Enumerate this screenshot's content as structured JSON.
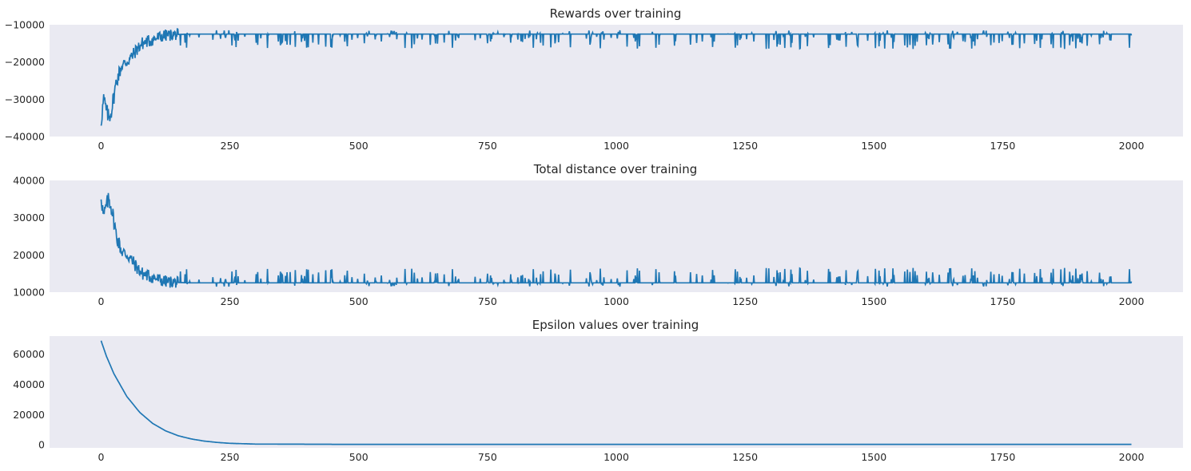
{
  "chart_data": [
    {
      "type": "line",
      "title": "Rewards over training",
      "xlabel": "",
      "ylabel": "",
      "xlim": [
        -100,
        2100
      ],
      "ylim": [
        -40000,
        -10000
      ],
      "xticks": [
        0,
        250,
        500,
        750,
        1000,
        1250,
        1500,
        1750,
        2000
      ],
      "xtick_labels": [
        "0",
        "250",
        "500",
        "750",
        "1000",
        "1250",
        "1500",
        "1750",
        "2000"
      ],
      "yticks": [
        -10000,
        -20000,
        -30000,
        -40000
      ],
      "ytick_labels": [
        "−10000",
        "−20000",
        "−30000",
        "−40000"
      ],
      "grid": false,
      "color": "#1f77b4",
      "series": [
        {
          "x": [
            0,
            5,
            10,
            15,
            20,
            25,
            30,
            40,
            50,
            60,
            70,
            80,
            90,
            100,
            110,
            120,
            130,
            150,
            175,
            200,
            250,
            300,
            400,
            500,
            750,
            1000,
            1250,
            1500,
            1750,
            2000
          ],
          "values": [
            -36000,
            -30000,
            -33000,
            -35000,
            -33000,
            -29000,
            -25000,
            -21000,
            -20000,
            -18500,
            -16500,
            -15000,
            -14500,
            -14000,
            -13500,
            -13000,
            -12800,
            -12600,
            -12500,
            -12500,
            -12500,
            -12500,
            -12500,
            -12500,
            -12500,
            -12500,
            -12500,
            -12500,
            -12500,
            -12500
          ]
        }
      ],
      "noise_envelope": {
        "x": [
          0,
          20,
          50,
          100,
          150,
          2000
        ],
        "spread": [
          4000,
          4000,
          3000,
          3000,
          2500,
          2500
        ]
      }
    },
    {
      "type": "line",
      "title": "Total distance over training",
      "xlabel": "",
      "ylabel": "",
      "xlim": [
        -100,
        2100
      ],
      "ylim": [
        10000,
        40000
      ],
      "xticks": [
        0,
        250,
        500,
        750,
        1000,
        1250,
        1500,
        1750,
        2000
      ],
      "xtick_labels": [
        "0",
        "250",
        "500",
        "750",
        "1000",
        "1250",
        "1500",
        "1750",
        "2000"
      ],
      "yticks": [
        40000,
        30000,
        20000,
        10000
      ],
      "ytick_labels": [
        "40000",
        "30000",
        "20000",
        "10000"
      ],
      "grid": false,
      "color": "#1f77b4",
      "series": [
        {
          "x": [
            0,
            5,
            10,
            15,
            20,
            25,
            30,
            40,
            50,
            60,
            70,
            80,
            90,
            100,
            110,
            120,
            130,
            150,
            175,
            200,
            250,
            300,
            400,
            500,
            750,
            1000,
            1250,
            1500,
            1750,
            2000
          ],
          "values": [
            36000,
            30000,
            33000,
            35000,
            33000,
            29000,
            25000,
            21000,
            20000,
            18500,
            16500,
            15000,
            14500,
            14000,
            13500,
            13000,
            12800,
            12600,
            12500,
            12500,
            12500,
            12500,
            12500,
            12500,
            12500,
            12500,
            12500,
            12500,
            12500,
            12500
          ]
        }
      ],
      "noise_envelope": {
        "x": [
          0,
          20,
          50,
          100,
          150,
          2000
        ],
        "spread": [
          4000,
          4000,
          3000,
          3000,
          2500,
          2500
        ]
      }
    },
    {
      "type": "line",
      "title": "Epsilon values over training",
      "xlabel": "",
      "ylabel": "",
      "xlim": [
        -100,
        2100
      ],
      "ylim": [
        -2000,
        72000
      ],
      "xticks": [
        0,
        250,
        500,
        750,
        1000,
        1250,
        1500,
        1750,
        2000
      ],
      "xtick_labels": [
        "0",
        "250",
        "500",
        "750",
        "1000",
        "1250",
        "1500",
        "1750",
        "2000"
      ],
      "yticks": [
        60000,
        40000,
        20000,
        0
      ],
      "ytick_labels": [
        "60000",
        "40000",
        "20000",
        "0"
      ],
      "grid": false,
      "color": "#1f77b4",
      "series": [
        {
          "x": [
            0,
            10,
            25,
            50,
            75,
            100,
            125,
            150,
            175,
            200,
            225,
            250,
            300,
            500,
            750,
            1000,
            1250,
            1500,
            1750,
            2000
          ],
          "values": [
            69000,
            59000,
            47000,
            32000,
            21500,
            14200,
            9300,
            6000,
            3900,
            2500,
            1600,
            1000,
            500,
            300,
            300,
            300,
            300,
            300,
            300,
            300
          ]
        }
      ]
    }
  ]
}
